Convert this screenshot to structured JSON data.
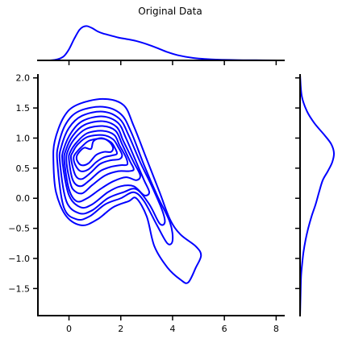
{
  "chart_data": {
    "type": "kde_joint",
    "title": "Original Data",
    "color": "#0000ff",
    "xlim": [
      -1.2,
      8.3
    ],
    "ylim": [
      -1.95,
      2.05
    ],
    "x_ticks": [
      0,
      2,
      4,
      6,
      8
    ],
    "y_ticks": [
      -1.5,
      -1.0,
      -0.5,
      0.0,
      0.5,
      1.0,
      1.5,
      2.0
    ],
    "y_tick_labels": [
      "−1.5",
      "−1.0",
      "−0.5",
      "0.0",
      "0.5",
      "1.0",
      "1.5",
      "2.0"
    ],
    "x_marginal_density": {
      "x": [
        -0.75,
        -0.45,
        -0.2,
        0.0,
        0.2,
        0.4,
        0.55,
        0.7,
        0.9,
        1.1,
        1.3,
        1.6,
        1.9,
        2.2,
        2.6,
        3.0,
        3.4,
        3.8,
        4.2,
        4.8,
        5.5,
        6.5,
        7.5,
        8.1
      ],
      "density": [
        0.0,
        0.03,
        0.12,
        0.32,
        0.62,
        0.88,
        0.97,
        0.99,
        0.93,
        0.84,
        0.78,
        0.72,
        0.66,
        0.62,
        0.56,
        0.47,
        0.36,
        0.24,
        0.15,
        0.07,
        0.03,
        0.01,
        0.004,
        0.0
      ]
    },
    "y_marginal_density": {
      "y": [
        -1.95,
        -1.6,
        -1.3,
        -1.1,
        -0.9,
        -0.7,
        -0.5,
        -0.3,
        -0.1,
        0.1,
        0.3,
        0.45,
        0.6,
        0.75,
        0.9,
        1.05,
        1.25,
        1.45,
        1.7,
        2.05
      ],
      "density": [
        0.0,
        0.015,
        0.03,
        0.06,
        0.1,
        0.16,
        0.24,
        0.34,
        0.46,
        0.56,
        0.67,
        0.82,
        0.95,
        1.0,
        0.92,
        0.72,
        0.42,
        0.2,
        0.05,
        0.0
      ]
    },
    "contours": [
      {
        "level": 1,
        "points": [
          [
            -0.6,
            0.6
          ],
          [
            -0.55,
            0.95
          ],
          [
            -0.2,
            1.35
          ],
          [
            0.3,
            1.55
          ],
          [
            1.3,
            1.65
          ],
          [
            2.1,
            1.55
          ],
          [
            2.5,
            1.2
          ],
          [
            3.0,
            0.65
          ],
          [
            3.5,
            0.1
          ],
          [
            3.9,
            -0.35
          ],
          [
            4.3,
            -0.6
          ],
          [
            4.9,
            -0.8
          ],
          [
            5.1,
            -0.95
          ],
          [
            4.9,
            -1.15
          ],
          [
            4.6,
            -1.4
          ],
          [
            4.3,
            -1.35
          ],
          [
            3.8,
            -1.15
          ],
          [
            3.3,
            -0.8
          ],
          [
            3.0,
            -0.3
          ],
          [
            2.6,
            0.0
          ],
          [
            2.3,
            -0.05
          ],
          [
            1.7,
            -0.15
          ],
          [
            1.1,
            -0.35
          ],
          [
            0.5,
            -0.45
          ],
          [
            -0.1,
            -0.3
          ],
          [
            -0.5,
            0.1
          ]
        ]
      },
      {
        "level": 2,
        "points": [
          [
            -0.45,
            0.6
          ],
          [
            -0.4,
            0.9
          ],
          [
            -0.1,
            1.25
          ],
          [
            0.4,
            1.45
          ],
          [
            1.3,
            1.52
          ],
          [
            2.0,
            1.4
          ],
          [
            2.4,
            1.1
          ],
          [
            2.9,
            0.55
          ],
          [
            3.4,
            0.05
          ],
          [
            3.9,
            -0.4
          ],
          [
            4.0,
            -0.7
          ],
          [
            3.8,
            -0.75
          ],
          [
            3.4,
            -0.45
          ],
          [
            2.9,
            -0.05
          ],
          [
            2.5,
            0.1
          ],
          [
            2.0,
            0.0
          ],
          [
            1.4,
            -0.1
          ],
          [
            0.8,
            -0.3
          ],
          [
            0.3,
            -0.35
          ],
          [
            -0.2,
            -0.15
          ]
        ]
      },
      {
        "level": 3,
        "points": [
          [
            -0.35,
            0.6
          ],
          [
            -0.3,
            0.85
          ],
          [
            0.0,
            1.17
          ],
          [
            0.5,
            1.37
          ],
          [
            1.3,
            1.44
          ],
          [
            1.95,
            1.32
          ],
          [
            2.3,
            1.05
          ],
          [
            2.75,
            0.6
          ],
          [
            3.2,
            0.2
          ],
          [
            3.6,
            -0.2
          ],
          [
            3.7,
            -0.4
          ],
          [
            3.5,
            -0.42
          ],
          [
            3.1,
            -0.1
          ],
          [
            2.6,
            0.15
          ],
          [
            2.1,
            0.1
          ],
          [
            1.5,
            0.0
          ],
          [
            0.9,
            -0.2
          ],
          [
            0.4,
            -0.25
          ],
          [
            -0.1,
            -0.05
          ]
        ]
      },
      {
        "level": 4,
        "points": [
          [
            -0.25,
            0.6
          ],
          [
            -0.2,
            0.82
          ],
          [
            0.1,
            1.1
          ],
          [
            0.55,
            1.29
          ],
          [
            1.3,
            1.36
          ],
          [
            1.9,
            1.25
          ],
          [
            2.2,
            1.0
          ],
          [
            2.6,
            0.6
          ],
          [
            2.9,
            0.3
          ],
          [
            3.1,
            0.1
          ],
          [
            2.9,
            0.05
          ],
          [
            2.5,
            0.2
          ],
          [
            2.0,
            0.2
          ],
          [
            1.5,
            0.1
          ],
          [
            0.9,
            -0.1
          ],
          [
            0.45,
            -0.15
          ],
          [
            0.0,
            0.05
          ]
        ]
      },
      {
        "level": 5,
        "points": [
          [
            -0.18,
            0.62
          ],
          [
            -0.12,
            0.8
          ],
          [
            0.15,
            1.04
          ],
          [
            0.6,
            1.22
          ],
          [
            1.3,
            1.28
          ],
          [
            1.85,
            1.18
          ],
          [
            2.1,
            0.95
          ],
          [
            2.5,
            0.6
          ],
          [
            2.75,
            0.38
          ],
          [
            2.6,
            0.3
          ],
          [
            2.2,
            0.35
          ],
          [
            1.7,
            0.28
          ],
          [
            1.2,
            0.15
          ],
          [
            0.7,
            0.0
          ],
          [
            0.3,
            -0.05
          ],
          [
            0.0,
            0.15
          ]
        ]
      },
      {
        "level": 6,
        "points": [
          [
            -0.1,
            0.63
          ],
          [
            -0.05,
            0.78
          ],
          [
            0.2,
            0.98
          ],
          [
            0.65,
            1.15
          ],
          [
            1.3,
            1.2
          ],
          [
            1.8,
            1.12
          ],
          [
            2.05,
            0.9
          ],
          [
            2.35,
            0.62
          ],
          [
            2.5,
            0.48
          ],
          [
            2.3,
            0.45
          ],
          [
            1.9,
            0.45
          ],
          [
            1.4,
            0.38
          ],
          [
            0.9,
            0.22
          ],
          [
            0.5,
            0.08
          ],
          [
            0.15,
            0.15
          ],
          [
            0.0,
            0.35
          ]
        ]
      },
      {
        "level": 7,
        "points": [
          [
            0.0,
            0.64
          ],
          [
            0.05,
            0.77
          ],
          [
            0.3,
            0.93
          ],
          [
            0.7,
            1.08
          ],
          [
            1.3,
            1.12
          ],
          [
            1.75,
            1.05
          ],
          [
            1.95,
            0.88
          ],
          [
            2.2,
            0.68
          ],
          [
            2.25,
            0.56
          ],
          [
            2.0,
            0.55
          ],
          [
            1.6,
            0.52
          ],
          [
            1.2,
            0.45
          ],
          [
            0.8,
            0.3
          ],
          [
            0.45,
            0.2
          ],
          [
            0.15,
            0.3
          ]
        ]
      },
      {
        "level": 8,
        "points": [
          [
            0.08,
            0.66
          ],
          [
            0.15,
            0.77
          ],
          [
            0.35,
            0.9
          ],
          [
            0.72,
            1.02
          ],
          [
            1.3,
            1.05
          ],
          [
            1.7,
            0.98
          ],
          [
            1.9,
            0.85
          ],
          [
            2.05,
            0.72
          ],
          [
            1.95,
            0.65
          ],
          [
            1.6,
            0.63
          ],
          [
            1.2,
            0.57
          ],
          [
            0.85,
            0.43
          ],
          [
            0.5,
            0.32
          ],
          [
            0.25,
            0.38
          ]
        ]
      },
      {
        "level": 9,
        "points": [
          [
            0.18,
            0.68
          ],
          [
            0.3,
            0.77
          ],
          [
            0.5,
            0.86
          ],
          [
            0.8,
            0.96
          ],
          [
            1.3,
            0.99
          ],
          [
            1.62,
            0.93
          ],
          [
            1.78,
            0.83
          ],
          [
            1.85,
            0.74
          ],
          [
            1.65,
            0.71
          ],
          [
            1.35,
            0.68
          ],
          [
            1.05,
            0.6
          ],
          [
            0.75,
            0.48
          ],
          [
            0.45,
            0.45
          ],
          [
            0.25,
            0.55
          ]
        ]
      },
      {
        "level": 10,
        "points": [
          [
            0.3,
            0.7
          ],
          [
            0.42,
            0.78
          ],
          [
            0.6,
            0.84
          ],
          [
            0.85,
            0.82
          ],
          [
            0.95,
            0.95
          ],
          [
            1.25,
            1.0
          ],
          [
            1.55,
            0.94
          ],
          [
            1.7,
            0.84
          ],
          [
            1.62,
            0.77
          ],
          [
            1.35,
            0.77
          ],
          [
            1.05,
            0.72
          ],
          [
            0.75,
            0.58
          ],
          [
            0.48,
            0.55
          ],
          [
            0.32,
            0.62
          ]
        ]
      }
    ]
  }
}
